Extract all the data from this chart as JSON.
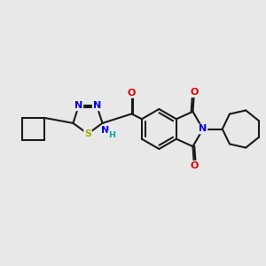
{
  "background_color": "#e8e8e8",
  "bond_color": "#1a1a1a",
  "bond_lw": 1.5,
  "dbo": 0.06,
  "fs": 8.0,
  "fs_small": 6.8,
  "atom_colors": {
    "N": "#0000dd",
    "O": "#dd0000",
    "S": "#aaaa00",
    "H": "#00aaaa"
  },
  "xlim": [
    0,
    10
  ],
  "ylim": [
    0,
    10
  ]
}
